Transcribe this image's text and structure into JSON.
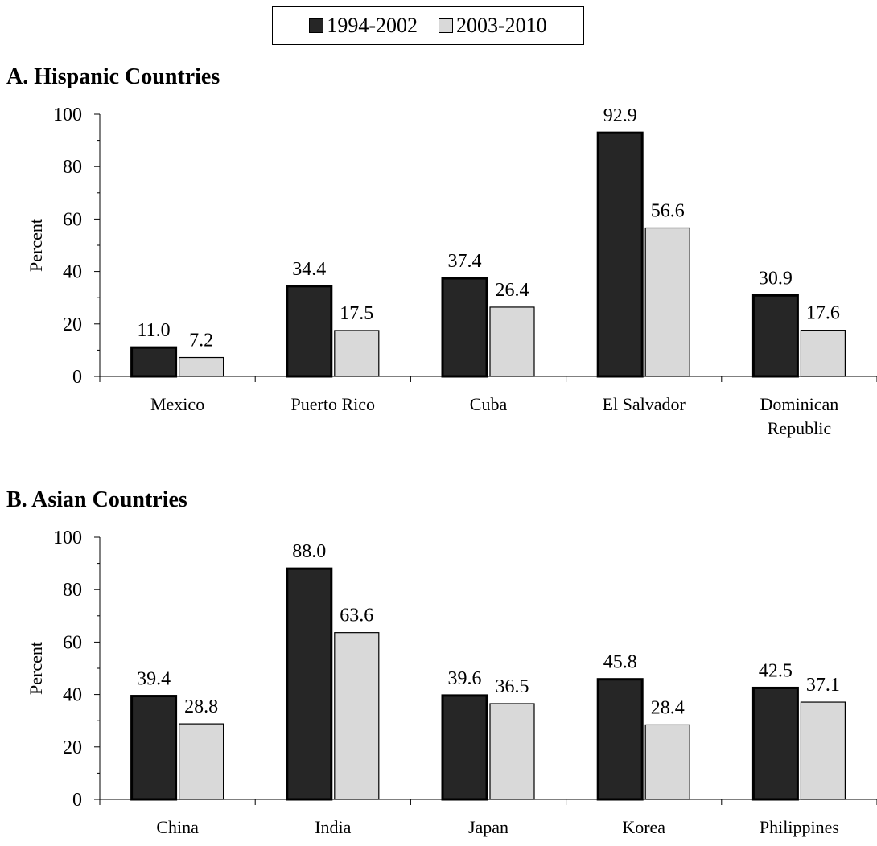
{
  "legend": [
    {
      "label": "1994-2002",
      "color": "#262626"
    },
    {
      "label": "2003-2010",
      "color": "#d9d9d9"
    }
  ],
  "chart_data": [
    {
      "type": "bar",
      "title": "A. Hispanic Countries",
      "ylabel": "Percent",
      "ylim": [
        0,
        100
      ],
      "yticks": [
        0,
        20,
        40,
        60,
        80,
        100
      ],
      "categories": [
        "Mexico",
        "Puerto Rico",
        "Cuba",
        "El Salvador",
        "Dominican Republic"
      ],
      "category_lines": [
        [
          "Mexico"
        ],
        [
          "Puerto Rico"
        ],
        [
          "Cuba"
        ],
        [
          "El Salvador"
        ],
        [
          "Dominican",
          "Republic"
        ]
      ],
      "series": [
        {
          "name": "1994-2002",
          "values": [
            11.0,
            34.4,
            37.4,
            92.9,
            30.9
          ],
          "labels": [
            "11.0",
            "34.4",
            "37.4",
            "92.9",
            "30.9"
          ]
        },
        {
          "name": "2003-2010",
          "values": [
            7.2,
            17.5,
            26.4,
            56.6,
            17.6
          ],
          "labels": [
            "7.2",
            "17.5",
            "26.4",
            "56.6",
            "17.6"
          ]
        }
      ]
    },
    {
      "type": "bar",
      "title": "B. Asian Countries",
      "ylabel": "Percent",
      "ylim": [
        0,
        100
      ],
      "yticks": [
        0,
        20,
        40,
        60,
        80,
        100
      ],
      "categories": [
        "China",
        "India",
        "Japan",
        "Korea",
        "Philippines"
      ],
      "category_lines": [
        [
          "China"
        ],
        [
          "India"
        ],
        [
          "Japan"
        ],
        [
          "Korea"
        ],
        [
          "Philippines"
        ]
      ],
      "series": [
        {
          "name": "1994-2002",
          "values": [
            39.4,
            88.0,
            39.6,
            45.8,
            42.5
          ],
          "labels": [
            "39.4",
            "88.0",
            "39.6",
            "45.8",
            "42.5"
          ]
        },
        {
          "name": "2003-2010",
          "values": [
            28.8,
            63.6,
            36.5,
            28.4,
            37.1
          ],
          "labels": [
            "28.8",
            "63.6",
            "36.5",
            "28.4",
            "37.1"
          ]
        }
      ]
    }
  ]
}
